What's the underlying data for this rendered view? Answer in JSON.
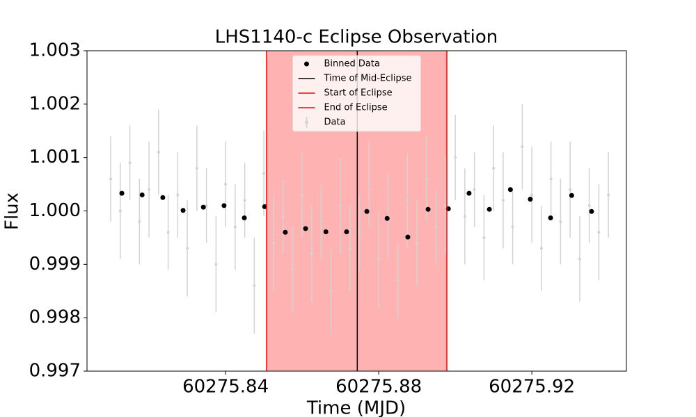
{
  "chart_data": {
    "type": "scatter",
    "title": "LHS1140-c Eclipse Observation",
    "xlabel": "Time (MJD)",
    "ylabel": "Flux",
    "xlim": [
      60275.8038,
      60275.9447
    ],
    "xticks": [
      60275.84,
      60275.88,
      60275.92
    ],
    "ylim": [
      0.997,
      1.003
    ],
    "yticks": [
      0.997,
      0.998,
      0.999,
      {
        "value": 1,
        "label": "1.000"
      },
      1.001,
      1.002,
      1.003
    ],
    "legend": "upper center",
    "span_color": "#ff0000",
    "vlines": [
      {
        "name": "Time of Mid-Eclipse",
        "x": 60275.8744,
        "color": "#000000"
      },
      {
        "name": "Start of Eclipse",
        "x": 60275.8507,
        "color": "#ff0000"
      },
      {
        "name": "End of Eclipse",
        "x": 60275.8978,
        "color": "#ff0000"
      }
    ],
    "series": [
      {
        "name": "Data",
        "color": "#d3d3d3",
        "x": [
          60275.81,
          60275.8125,
          60275.815,
          60275.8175,
          60275.82,
          60275.8225,
          60275.825,
          60275.8275,
          60275.83,
          60275.8325,
          60275.835,
          60275.8375,
          60275.84,
          60275.8425,
          60275.845,
          60275.8475,
          60275.85,
          60275.8525,
          60275.855,
          60275.8575,
          60275.86,
          60275.8625,
          60275.865,
          60275.8675,
          60275.87,
          60275.8725,
          60275.875,
          60275.8775,
          60275.88,
          60275.8825,
          60275.885,
          60275.8875,
          60275.89,
          60275.8925,
          60275.895,
          60275.8975,
          60275.9,
          60275.9025,
          60275.905,
          60275.9075,
          60275.91,
          60275.9125,
          60275.915,
          60275.9175,
          60275.92,
          60275.9225,
          60275.925,
          60275.9275,
          60275.93,
          60275.9325,
          60275.935,
          60275.9375,
          60275.94
        ],
        "values": [
          1.0006,
          1.0,
          1.0009,
          0.9998,
          1.0004,
          1.0011,
          0.9996,
          1.0003,
          0.9993,
          1.0008,
          1.0001,
          0.999,
          1.0005,
          0.9997,
          1.0002,
          0.9986,
          1.0007,
          0.9994,
          0.9999,
          0.9989,
          1.0003,
          0.9992,
          0.9998,
          0.9985,
          1.0001,
          0.9993,
          0.9996,
          1.0005,
          0.9991,
          0.9999,
          0.9987,
          1.0002,
          0.9994,
          1.0006,
          0.9997,
          1.0001,
          1.001,
          0.9999,
          1.0004,
          0.9995,
          1.0008,
          1.0002,
          0.9997,
          1.0012,
          1.0003,
          0.9993,
          1.0006,
          0.9998,
          1.0004,
          0.9991,
          1.0001,
          0.9996,
          1.0003
        ],
        "errors": [
          0.0008,
          0.0009,
          0.0007,
          0.0008,
          0.0009,
          0.0008,
          0.0007,
          0.0008,
          0.0009,
          0.0008,
          0.0007,
          0.0009,
          0.0008,
          0.0008,
          0.0007,
          0.0009,
          0.0008,
          0.0009,
          0.0007,
          0.0008,
          0.0008,
          0.0009,
          0.0007,
          0.0008,
          0.0009,
          0.0008,
          0.0007,
          0.0008,
          0.0009,
          0.0008,
          0.0007,
          0.0009,
          0.0008,
          0.0008,
          0.0007,
          0.0009,
          0.0008,
          0.0009,
          0.0007,
          0.0008,
          0.0008,
          0.0009,
          0.0007,
          0.0008,
          0.0009,
          0.0008,
          0.0007,
          0.0008,
          0.0009,
          0.0008,
          0.0007,
          0.0009,
          0.0008
        ]
      },
      {
        "name": "Binned Data",
        "color": "#000000",
        "x": [
          60275.8129,
          60275.8182,
          60275.8236,
          60275.8289,
          60275.8342,
          60275.8396,
          60275.8449,
          60275.8502,
          60275.8556,
          60275.8609,
          60275.8662,
          60275.8716,
          60275.8769,
          60275.8822,
          60275.8876,
          60275.8929,
          60275.8982,
          60275.9036,
          60275.9089,
          60275.9144,
          60275.9196,
          60275.9249,
          60275.9304,
          60275.9356
        ],
        "values": [
          1.00033,
          1.0003,
          1.00025,
          1.00001,
          1.00007,
          1.0001,
          0.99987,
          1.00008,
          0.9996,
          0.99967,
          0.99961,
          0.99961,
          0.99999,
          0.99986,
          0.99951,
          1.00003,
          1.00004,
          1.00033,
          1.00003,
          1.0004,
          1.00022,
          0.99987,
          1.00029,
          0.99999
        ]
      }
    ]
  }
}
